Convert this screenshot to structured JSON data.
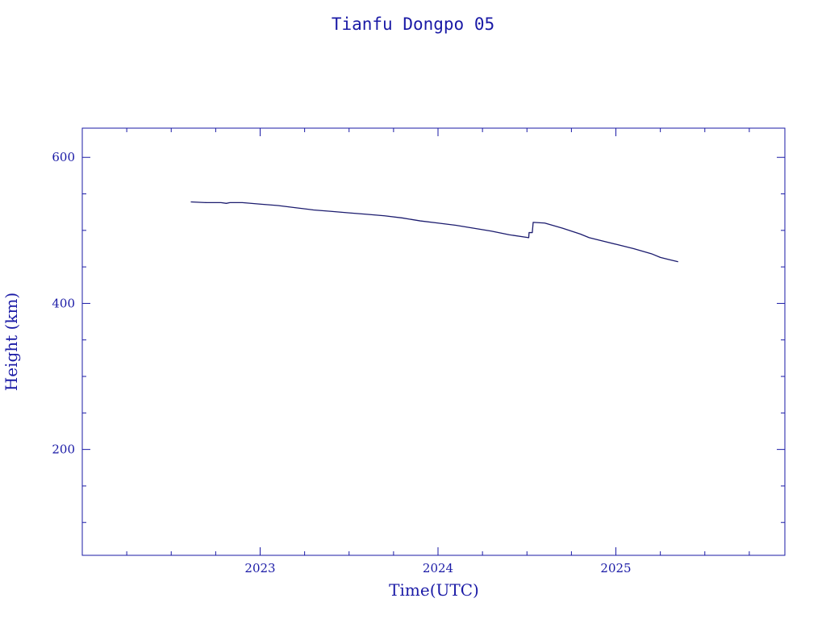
{
  "chart_data": {
    "type": "line",
    "title": "Tianfu Dongpo 05",
    "xlabel": "Time(UTC)",
    "ylabel": "Height (km)",
    "xlim": [
      2022.0,
      2025.95
    ],
    "ylim": [
      55,
      640
    ],
    "xticks": [
      {
        "value": 2023,
        "label": "2023"
      },
      {
        "value": 2024,
        "label": "2024"
      },
      {
        "value": 2025,
        "label": "2025"
      }
    ],
    "yticks": [
      {
        "value": 200,
        "label": "200"
      },
      {
        "value": 400,
        "label": "400"
      },
      {
        "value": 600,
        "label": "600"
      }
    ],
    "x_minor_step": 0.25,
    "y_minor_step": 50,
    "grid": false,
    "colors": {
      "axes": "#1a1aa6",
      "text": "#1a1aa6",
      "line": "#1b1b6e"
    },
    "series": [
      {
        "points": [
          [
            2022.61,
            539
          ],
          [
            2022.7,
            538
          ],
          [
            2022.78,
            538
          ],
          [
            2022.81,
            537
          ],
          [
            2022.83,
            538
          ],
          [
            2022.9,
            538
          ],
          [
            2023.0,
            536
          ],
          [
            2023.1,
            534
          ],
          [
            2023.2,
            531
          ],
          [
            2023.3,
            528
          ],
          [
            2023.4,
            526
          ],
          [
            2023.5,
            524
          ],
          [
            2023.6,
            522
          ],
          [
            2023.7,
            520
          ],
          [
            2023.8,
            517
          ],
          [
            2023.9,
            513
          ],
          [
            2024.0,
            510
          ],
          [
            2024.1,
            507
          ],
          [
            2024.2,
            503
          ],
          [
            2024.3,
            499
          ],
          [
            2024.4,
            494
          ],
          [
            2024.51,
            490
          ],
          [
            2024.512,
            497
          ],
          [
            2024.53,
            497
          ],
          [
            2024.535,
            511
          ],
          [
            2024.6,
            510
          ],
          [
            2024.7,
            503
          ],
          [
            2024.8,
            495
          ],
          [
            2024.85,
            490
          ],
          [
            2024.9,
            487
          ],
          [
            2025.0,
            481
          ],
          [
            2025.1,
            475
          ],
          [
            2025.2,
            468
          ],
          [
            2025.25,
            463
          ],
          [
            2025.3,
            460
          ],
          [
            2025.35,
            457
          ]
        ]
      }
    ]
  }
}
